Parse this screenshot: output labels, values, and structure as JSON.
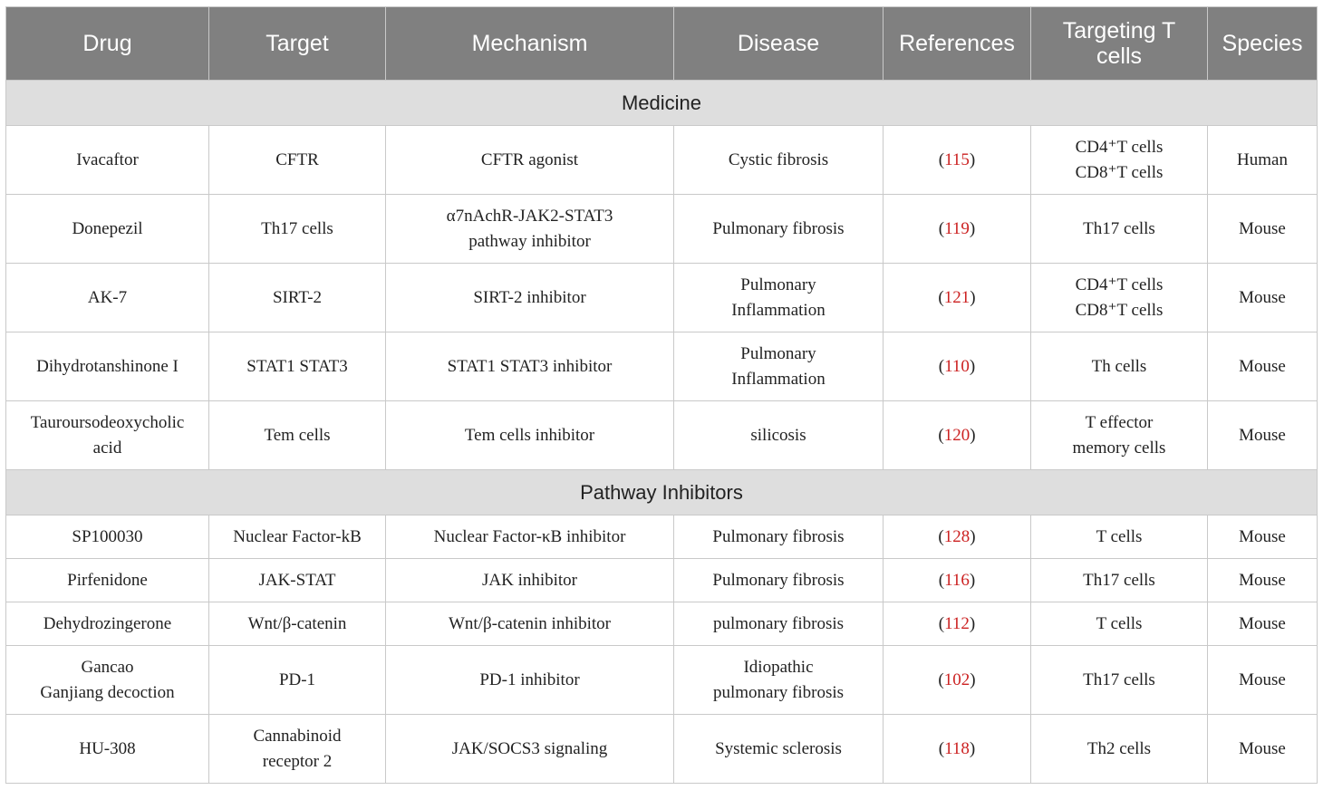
{
  "table": {
    "headers": [
      "Drug",
      "Target",
      "Mechanism",
      "Disease",
      "References",
      "Targeting T cells",
      "Species"
    ],
    "sections": [
      {
        "title": "Medicine",
        "rows": [
          {
            "drug": [
              "Ivacaftor"
            ],
            "target": [
              "CFTR"
            ],
            "mechanism": [
              "CFTR agonist"
            ],
            "disease": [
              "Cystic fibrosis"
            ],
            "ref": "115",
            "tcells": [
              "CD4⁺T cells",
              "CD8⁺T cells"
            ],
            "species": "Human"
          },
          {
            "drug": [
              "Donepezil"
            ],
            "target": [
              "Th17 cells"
            ],
            "mechanism": [
              "α7nAchR-JAK2-STAT3",
              "pathway inhibitor"
            ],
            "disease": [
              "Pulmonary fibrosis"
            ],
            "ref": "119",
            "tcells": [
              "Th17 cells"
            ],
            "species": "Mouse"
          },
          {
            "drug": [
              "AK-7"
            ],
            "target": [
              "SIRT-2"
            ],
            "mechanism": [
              "SIRT-2 inhibitor"
            ],
            "disease": [
              "Pulmonary",
              "Inflammation"
            ],
            "ref": "121",
            "tcells": [
              "CD4⁺T cells",
              "CD8⁺T cells"
            ],
            "species": "Mouse"
          },
          {
            "drug": [
              "Dihydrotanshinone I"
            ],
            "target": [
              "STAT1 STAT3"
            ],
            "mechanism": [
              "STAT1 STAT3 inhibitor"
            ],
            "disease": [
              "Pulmonary",
              "Inflammation"
            ],
            "ref": "110",
            "tcells": [
              "Th cells"
            ],
            "species": "Mouse"
          },
          {
            "drug": [
              "Tauroursodeoxycholic",
              "acid"
            ],
            "target": [
              "Tem cells"
            ],
            "mechanism": [
              "Tem cells inhibitor"
            ],
            "disease": [
              "silicosis"
            ],
            "ref": "120",
            "tcells": [
              "T effector",
              "memory cells"
            ],
            "species": "Mouse"
          }
        ]
      },
      {
        "title": "Pathway Inhibitors",
        "rows": [
          {
            "drug": [
              "SP100030"
            ],
            "target": [
              "Nuclear Factor-kB"
            ],
            "mechanism": [
              "Nuclear Factor-κB inhibitor"
            ],
            "disease": [
              "Pulmonary fibrosis"
            ],
            "ref": "128",
            "tcells": [
              "T cells"
            ],
            "species": "Mouse"
          },
          {
            "drug": [
              "Pirfenidone"
            ],
            "target": [
              "JAK-STAT"
            ],
            "mechanism": [
              "JAK inhibitor"
            ],
            "disease": [
              "Pulmonary fibrosis"
            ],
            "ref": "116",
            "tcells": [
              "Th17 cells"
            ],
            "species": "Mouse"
          },
          {
            "drug": [
              "Dehydrozingerone"
            ],
            "target": [
              "Wnt/β-catenin"
            ],
            "mechanism": [
              "Wnt/β-catenin inhibitor"
            ],
            "disease": [
              "pulmonary fibrosis"
            ],
            "ref": "112",
            "tcells": [
              "T cells"
            ],
            "species": "Mouse"
          },
          {
            "drug": [
              "Gancao",
              "Ganjiang decoction"
            ],
            "target": [
              "PD-1"
            ],
            "mechanism": [
              "PD-1 inhibitor"
            ],
            "disease": [
              "Idiopathic",
              "pulmonary fibrosis"
            ],
            "ref": "102",
            "tcells": [
              "Th17 cells"
            ],
            "species": "Mouse"
          },
          {
            "drug": [
              "HU-308"
            ],
            "target": [
              "Cannabinoid",
              "receptor 2"
            ],
            "mechanism": [
              "JAK/SOCS3 signaling"
            ],
            "disease": [
              "Systemic sclerosis"
            ],
            "ref": "118",
            "tcells": [
              "Th2 cells"
            ],
            "species": "Mouse"
          }
        ]
      }
    ]
  }
}
